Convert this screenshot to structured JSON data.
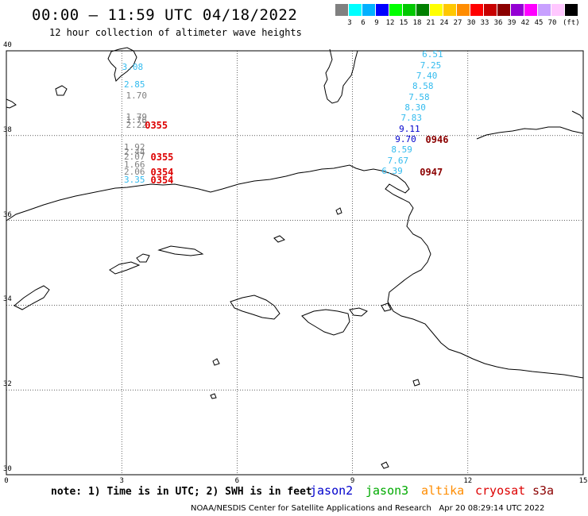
{
  "header": {
    "title": "00:00 – 11:59 UTC 04/18/2022",
    "subtitle": "12 hour collection of altimeter wave heights"
  },
  "scale": {
    "colors": [
      "#808080",
      "#00ffff",
      "#00b0ff",
      "#0000ff",
      "#00ff00",
      "#00c800",
      "#008000",
      "#ffff00",
      "#ffc800",
      "#ff8c00",
      "#ff0000",
      "#c80000",
      "#8b0000",
      "#9400d3",
      "#ff00ff",
      "#c8a0ff",
      "#ffc8ff",
      "#000000"
    ],
    "labels": [
      "3",
      "6",
      "9",
      "12",
      "15",
      "18",
      "21",
      "24",
      "27",
      "30",
      "33",
      "36",
      "39",
      "42",
      "45",
      "70"
    ],
    "unit": "(ft)"
  },
  "axes": {
    "y_ticks": [
      "40",
      "38",
      "36",
      "34",
      "32",
      "30"
    ],
    "x_ticks": [
      "0",
      "3",
      "6",
      "9",
      "12",
      "15"
    ]
  },
  "observations": [
    {
      "value": "3.08",
      "color": "#33bbee",
      "lon": 3.05,
      "lat": 39.6
    },
    {
      "value": "2.85",
      "color": "#33bbee",
      "lon": 3.1,
      "lat": 39.2
    },
    {
      "value": "1.70",
      "color": "#808080",
      "lon": 3.15,
      "lat": 38.93
    },
    {
      "value": "1.79",
      "color": "#808080",
      "lon": 3.15,
      "lat": 38.42
    },
    {
      "value": "1.76",
      "color": "#808080",
      "lon": 3.15,
      "lat": 38.35
    },
    {
      "value": "2.22",
      "color": "#808080",
      "lon": 3.15,
      "lat": 38.24
    },
    {
      "value": "1.92",
      "color": "#808080",
      "lon": 3.1,
      "lat": 37.72
    },
    {
      "value": "2.44",
      "color": "#808080",
      "lon": 3.1,
      "lat": 37.6
    },
    {
      "value": "2.07",
      "color": "#808080",
      "lon": 3.1,
      "lat": 37.49
    },
    {
      "value": "1.66",
      "color": "#808080",
      "lon": 3.1,
      "lat": 37.31
    },
    {
      "value": "2.06",
      "color": "#808080",
      "lon": 3.1,
      "lat": 37.13
    },
    {
      "value": "3.35",
      "color": "#33bbee",
      "lon": 3.1,
      "lat": 36.94
    },
    {
      "value": "6.51",
      "color": "#33bbee",
      "lon": 10.85,
      "lat": 39.9
    },
    {
      "value": "7.25",
      "color": "#33bbee",
      "lon": 10.8,
      "lat": 39.65
    },
    {
      "value": "7.40",
      "color": "#33bbee",
      "lon": 10.7,
      "lat": 39.4
    },
    {
      "value": "8.58",
      "color": "#33bbee",
      "lon": 10.6,
      "lat": 39.15
    },
    {
      "value": "7.58",
      "color": "#33bbee",
      "lon": 10.5,
      "lat": 38.9
    },
    {
      "value": "8.30",
      "color": "#33bbee",
      "lon": 10.4,
      "lat": 38.65
    },
    {
      "value": "7.83",
      "color": "#33bbee",
      "lon": 10.3,
      "lat": 38.4
    },
    {
      "value": "9.11",
      "color": "#0000cc",
      "lon": 10.25,
      "lat": 38.15
    },
    {
      "value": "9.70",
      "color": "#0000cc",
      "lon": 10.15,
      "lat": 37.9
    },
    {
      "value": "8.59",
      "color": "#33bbee",
      "lon": 10.05,
      "lat": 37.65
    },
    {
      "value": "7.67",
      "color": "#33bbee",
      "lon": 9.95,
      "lat": 37.4
    },
    {
      "value": "6.39",
      "color": "#33bbee",
      "lon": 9.8,
      "lat": 37.15
    }
  ],
  "pass_times": [
    {
      "label": "0355",
      "color": "#dd0000",
      "lon": 3.6,
      "lat": 38.24
    },
    {
      "label": "0355",
      "color": "#dd0000",
      "lon": 3.75,
      "lat": 37.49
    },
    {
      "label": "0354",
      "color": "#dd0000",
      "lon": 3.75,
      "lat": 37.13
    },
    {
      "label": "0354",
      "color": "#dd0000",
      "lon": 3.75,
      "lat": 36.94
    },
    {
      "label": "0946",
      "color": "#8b0000",
      "lon": 10.9,
      "lat": 37.9
    },
    {
      "label": "0947",
      "color": "#8b0000",
      "lon": 10.75,
      "lat": 37.13
    }
  ],
  "footer": {
    "note": "note: 1) Time is in UTC; 2) SWH is in feet",
    "satellites": [
      {
        "name": "jason2",
        "color": "#0000cc"
      },
      {
        "name": "jason3",
        "color": "#00aa00"
      },
      {
        "name": "altika",
        "color": "#ff8c00"
      },
      {
        "name": "cryosat",
        "color": "#dd0000"
      },
      {
        "name": "s3a",
        "color": "#8b0000"
      }
    ],
    "credit": "NOAA/NESDIS Center for Satellite Applications and Research   Apr 20 08:29:14 UTC 2022"
  }
}
